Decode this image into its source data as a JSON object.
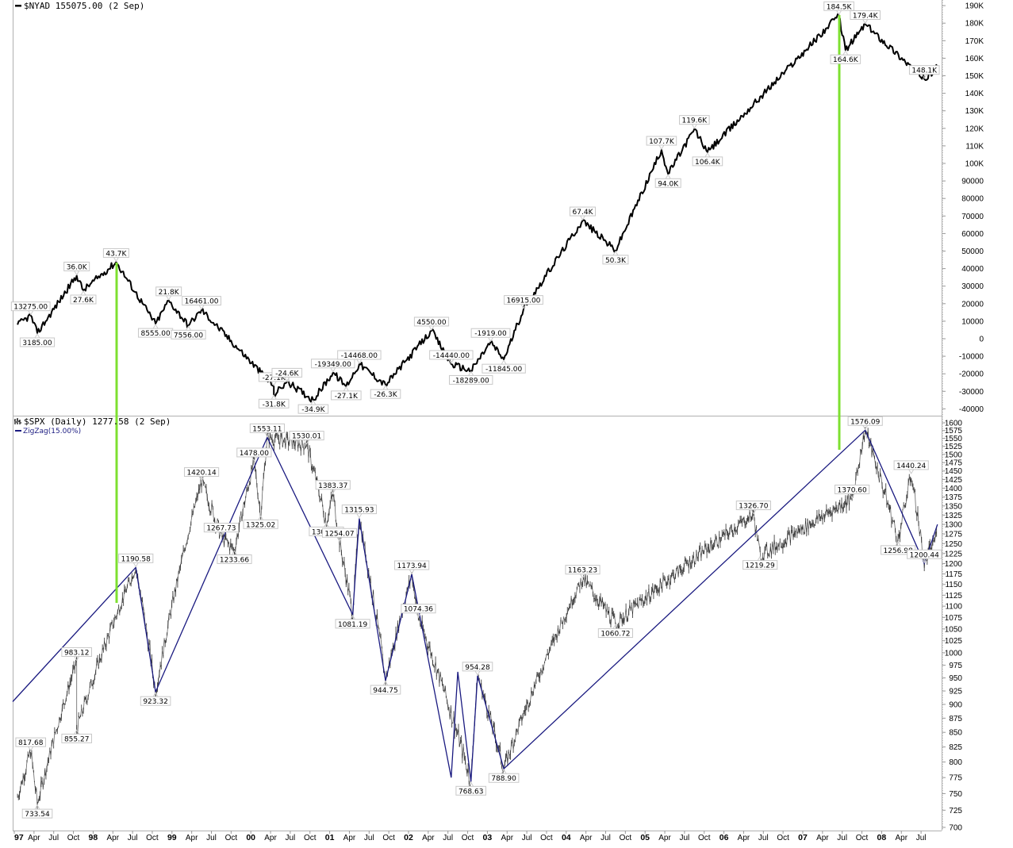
{
  "top_panel": {
    "legend": "$NYAD 155075.00 (2 Sep)",
    "y_ticks": [
      "190K",
      "180K",
      "170K",
      "160K",
      "150K",
      "140K",
      "130K",
      "120K",
      "110K",
      "100K",
      "90000",
      "80000",
      "70000",
      "60000",
      "50000",
      "40000",
      "30000",
      "20000",
      "10000",
      "0",
      "-10000",
      "-20000",
      "-30000",
      "-40000"
    ]
  },
  "bottom_panel": {
    "legend": "$SPX (Daily) 1277.58 (2 Sep)",
    "indicator_legend": "ZigZag(15.00%)",
    "y_ticks": [
      "1600",
      "1575",
      "1550",
      "1525",
      "1500",
      "1475",
      "1450",
      "1425",
      "1400",
      "1375",
      "1350",
      "1325",
      "1300",
      "1275",
      "1250",
      "1225",
      "1200",
      "1175",
      "1150",
      "1125",
      "1100",
      "1075",
      "1050",
      "1025",
      "1000",
      "975",
      "950",
      "925",
      "900",
      "875",
      "850",
      "825",
      "800",
      "775",
      "750",
      "725",
      "700"
    ]
  },
  "x_axis": {
    "labels": [
      "97",
      "Apr",
      "Jul",
      "Oct",
      "98",
      "Apr",
      "Jul",
      "Oct",
      "99",
      "Apr",
      "Jul",
      "Oct",
      "00",
      "Apr",
      "Jul",
      "Oct",
      "01",
      "Apr",
      "Jul",
      "Oct",
      "02",
      "Apr",
      "Jul",
      "Oct",
      "03",
      "Apr",
      "Jul",
      "Oct",
      "04",
      "Apr",
      "Jul",
      "Oct",
      "05",
      "Apr",
      "Jul",
      "Oct",
      "06",
      "Apr",
      "Jul",
      "Oct",
      "07",
      "Apr",
      "Jul",
      "Oct",
      "08",
      "Apr",
      "Jul"
    ]
  },
  "colors": {
    "price_line": "#000000",
    "zigzag": "#1a1a80",
    "highlight_line": "#7ee030",
    "bars": "#555555",
    "frame": "#b0b0b0"
  },
  "chart_data": [
    {
      "type": "line",
      "title": "$NYAD 155075.00 (2 Sep)",
      "xlabel": "",
      "ylabel": "",
      "ylim": [
        -40000,
        190000
      ],
      "x_range": [
        "1997-01",
        "2008-09"
      ],
      "grid": false,
      "legend_position": "top-left",
      "series": [
        {
          "name": "$NYAD",
          "last_value": 155075.0
        }
      ],
      "annotations": [
        {
          "label": "13275.00",
          "x": "1997-03",
          "value": 13275
        },
        {
          "label": "3185.00",
          "x": "1997-04",
          "value": 3185
        },
        {
          "label": "36.0K",
          "x": "1997-10",
          "value": 36000
        },
        {
          "label": "27.6K",
          "x": "1997-11",
          "value": 27600
        },
        {
          "label": "43.7K",
          "x": "1998-04",
          "value": 43700
        },
        {
          "label": "8555.00",
          "x": "1998-10",
          "value": 8555
        },
        {
          "label": "21.8K",
          "x": "1998-12",
          "value": 21800
        },
        {
          "label": "7556.00",
          "x": "1999-03",
          "value": 7556
        },
        {
          "label": "16461.00",
          "x": "1999-05",
          "value": 16461
        },
        {
          "label": "-27.1K",
          "x": "2000-04",
          "value": -27100
        },
        {
          "label": "-31.8K",
          "x": "2000-04",
          "value": -31800
        },
        {
          "label": "-24.6K",
          "x": "2000-06",
          "value": -24600
        },
        {
          "label": "-34.9K",
          "x": "2000-10",
          "value": -34900
        },
        {
          "label": "-19349.00",
          "x": "2001-01",
          "value": -19349
        },
        {
          "label": "-27.1K",
          "x": "2001-03",
          "value": -27100
        },
        {
          "label": "-14468.00",
          "x": "2001-05",
          "value": -14468
        },
        {
          "label": "-26.3K",
          "x": "2001-09",
          "value": -26300
        },
        {
          "label": "4550.00",
          "x": "2002-04",
          "value": 4550
        },
        {
          "label": "-14440.00",
          "x": "2002-07",
          "value": -14440
        },
        {
          "label": "-18289.00",
          "x": "2002-10",
          "value": -18289
        },
        {
          "label": "-1919.00",
          "x": "2003-01",
          "value": -1919
        },
        {
          "label": "-11845.00",
          "x": "2003-03",
          "value": -11845
        },
        {
          "label": "16915.00",
          "x": "2003-06",
          "value": 16915
        },
        {
          "label": "67.4K",
          "x": "2004-03",
          "value": 67400
        },
        {
          "label": "50.3K",
          "x": "2004-08",
          "value": 50300
        },
        {
          "label": "107.7K",
          "x": "2005-03",
          "value": 107700
        },
        {
          "label": "94.0K",
          "x": "2005-04",
          "value": 94000
        },
        {
          "label": "119.6K",
          "x": "2005-08",
          "value": 119600
        },
        {
          "label": "106.4K",
          "x": "2005-10",
          "value": 106400
        },
        {
          "label": "184.5K",
          "x": "2007-06",
          "value": 184500
        },
        {
          "label": "164.6K",
          "x": "2007-07",
          "value": 164600
        },
        {
          "label": "179.4K",
          "x": "2007-10",
          "value": 179400
        },
        {
          "label": "148.1K",
          "x": "2008-07",
          "value": 148100
        }
      ]
    },
    {
      "type": "line",
      "subtype": "ohlc-bars with zigzag overlay",
      "title": "$SPX (Daily) 1277.58 (2 Sep)",
      "xlabel": "",
      "ylabel": "",
      "ylim": [
        700,
        1600
      ],
      "y_scale": "log",
      "grid": false,
      "legend_position": "top-left",
      "series": [
        {
          "name": "$SPX",
          "last_value": 1277.58
        },
        {
          "name": "ZigZag(15.00%)",
          "points": [
            {
              "x": "1997-01",
              "value": 905
            },
            {
              "x": "1998-07",
              "value": 1190.58
            },
            {
              "x": "1998-10",
              "value": 923.32
            },
            {
              "x": "2000-03",
              "value": 1553.11
            },
            {
              "x": "2001-04",
              "value": 1081.19
            },
            {
              "x": "2001-05",
              "value": 1315.93
            },
            {
              "x": "2001-09",
              "value": 944.75
            },
            {
              "x": "2002-01",
              "value": 1173.94
            },
            {
              "x": "2002-07",
              "value": 775
            },
            {
              "x": "2002-08",
              "value": 962
            },
            {
              "x": "2002-10",
              "value": 768.63
            },
            {
              "x": "2002-11",
              "value": 954.28
            },
            {
              "x": "2003-03",
              "value": 788.9
            },
            {
              "x": "2007-10",
              "value": 1576.09
            },
            {
              "x": "2008-07",
              "value": 1200.44
            },
            {
              "x": "2008-09",
              "value": 1300
            }
          ]
        }
      ],
      "annotations": [
        {
          "label": "817.68",
          "x": "1997-03",
          "value": 817.68
        },
        {
          "label": "733.54",
          "x": "1997-04",
          "value": 733.54
        },
        {
          "label": "983.12",
          "x": "1997-10",
          "value": 983.12
        },
        {
          "label": "855.27",
          "x": "1997-10",
          "value": 855.27
        },
        {
          "label": "1190.58",
          "x": "1998-07",
          "value": 1190.58
        },
        {
          "label": "923.32",
          "x": "1998-10",
          "value": 923.32
        },
        {
          "label": "1420.14",
          "x": "1999-05",
          "value": 1420.14
        },
        {
          "label": "1267.73",
          "x": "1999-08",
          "value": 1267.73
        },
        {
          "label": "1233.66",
          "x": "1999-10",
          "value": 1233.66
        },
        {
          "label": "1478.00",
          "x": "2000-01",
          "value": 1478.0
        },
        {
          "label": "1325.02",
          "x": "2000-02",
          "value": 1325.02
        },
        {
          "label": "1553.11",
          "x": "2000-03",
          "value": 1553.11
        },
        {
          "label": "1530.01",
          "x": "2000-09",
          "value": 1530.01
        },
        {
          "label": "1305.79",
          "x": "2000-12",
          "value": 1305.79
        },
        {
          "label": "1383.37",
          "x": "2001-01",
          "value": 1383.37
        },
        {
          "label": "1254.07",
          "x": "2001-02",
          "value": 1254.07
        },
        {
          "label": "1315.93",
          "x": "2001-05",
          "value": 1315.93
        },
        {
          "label": "1081.19",
          "x": "2001-04",
          "value": 1081.19
        },
        {
          "label": "944.75",
          "x": "2001-09",
          "value": 944.75
        },
        {
          "label": "1173.94",
          "x": "2002-01",
          "value": 1173.94
        },
        {
          "label": "1074.36",
          "x": "2002-02",
          "value": 1074.36
        },
        {
          "label": "954.28",
          "x": "2002-11",
          "value": 954.28
        },
        {
          "label": "768.63",
          "x": "2002-10",
          "value": 768.63
        },
        {
          "label": "788.90",
          "x": "2003-03",
          "value": 788.9
        },
        {
          "label": "1163.23",
          "x": "2004-03",
          "value": 1163.23
        },
        {
          "label": "1060.72",
          "x": "2004-08",
          "value": 1060.72
        },
        {
          "label": "1326.70",
          "x": "2006-05",
          "value": 1326.7
        },
        {
          "label": "1219.29",
          "x": "2006-06",
          "value": 1219.29
        },
        {
          "label": "1576.09",
          "x": "2007-10",
          "value": 1576.09
        },
        {
          "label": "1370.60",
          "x": "2007-08",
          "value": 1370.6
        },
        {
          "label": "1440.24",
          "x": "2008-05",
          "value": 1440.24
        },
        {
          "label": "1256.98",
          "x": "2008-03",
          "value": 1256.98
        },
        {
          "label": "1200.44",
          "x": "2008-07",
          "value": 1200.44
        }
      ]
    }
  ],
  "vertical_markers": [
    {
      "x": "1998-04",
      "description": "green line linking NYAD 43.7K peak to SPX"
    },
    {
      "x": "2007-06",
      "description": "green line linking NYAD 184.5K peak to SPX"
    }
  ]
}
